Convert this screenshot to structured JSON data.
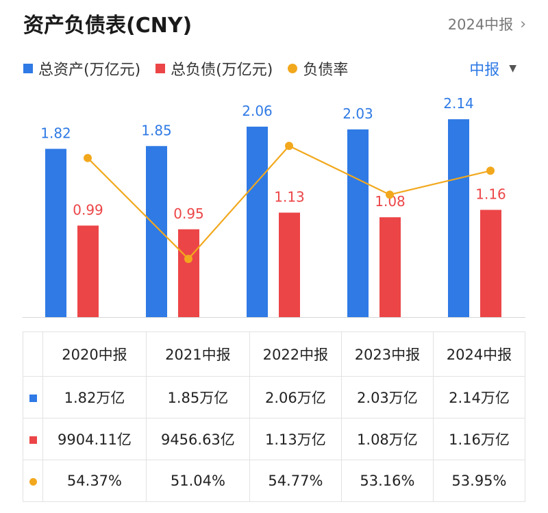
{
  "title": "资产负债表(CNY)",
  "period_link": {
    "label": "2024中报",
    "chevron": "›"
  },
  "legend": {
    "assets": "总资产(万亿元)",
    "liabilities": "总负债(万亿元)",
    "ratio": "负债率"
  },
  "period_select": {
    "label": "中报",
    "caret": "▼"
  },
  "colors": {
    "assets": "#2f7ae5",
    "liabilities": "#ec4547",
    "ratio": "#f2a81d"
  },
  "chart_data": {
    "type": "bar",
    "categories": [
      "2020中报",
      "2021中报",
      "2022中报",
      "2023中报",
      "2024中报"
    ],
    "series": [
      {
        "name": "总资产(万亿元)",
        "type": "bar",
        "values": [
          1.82,
          1.85,
          2.06,
          2.03,
          2.14
        ],
        "labels": [
          "1.82",
          "1.85",
          "2.06",
          "2.03",
          "2.14"
        ]
      },
      {
        "name": "总负债(万亿元)",
        "type": "bar",
        "values": [
          0.99,
          0.95,
          1.13,
          1.08,
          1.16
        ],
        "labels": [
          "0.99",
          "0.95",
          "1.13",
          "1.08",
          "1.16"
        ]
      },
      {
        "name": "负债率",
        "type": "line",
        "values": [
          54.37,
          51.04,
          54.77,
          53.16,
          53.95
        ]
      }
    ]
  },
  "table": {
    "headers": [
      "2020中报",
      "2021中报",
      "2022中报",
      "2023中报",
      "2024中报"
    ],
    "rows": [
      {
        "marker": "assets",
        "cells": [
          "1.82万亿",
          "1.85万亿",
          "2.06万亿",
          "2.03万亿",
          "2.14万亿"
        ]
      },
      {
        "marker": "liabilities",
        "cells": [
          "9904.11亿",
          "9456.63亿",
          "1.13万亿",
          "1.08万亿",
          "1.16万亿"
        ]
      },
      {
        "marker": "ratio",
        "cells": [
          "54.37%",
          "51.04%",
          "54.77%",
          "53.16%",
          "53.95%"
        ]
      }
    ]
  }
}
